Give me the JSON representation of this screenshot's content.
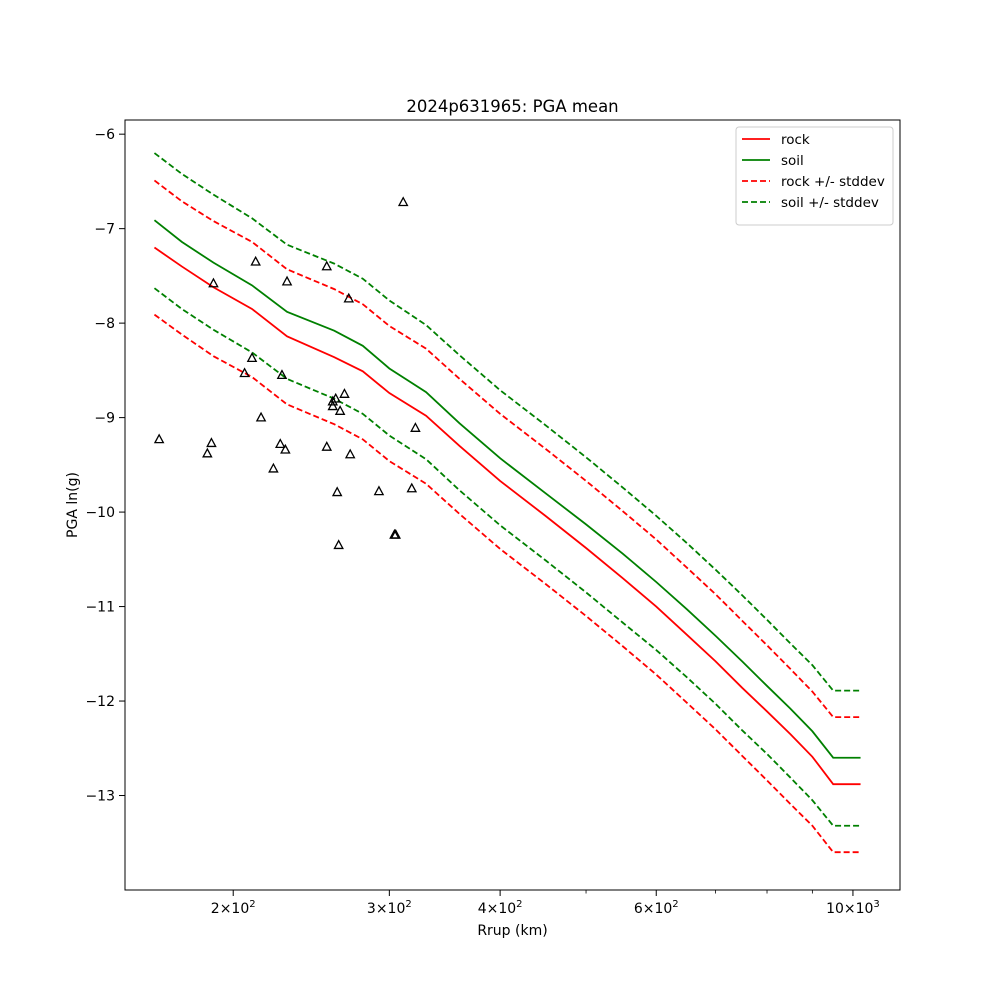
{
  "chart_data": {
    "type": "line",
    "title": "2024p631965: PGA mean",
    "xlabel": "Rrup (km)",
    "ylabel": "PGA ln(g)",
    "xscale": "log",
    "xlim": [
      151,
      1130
    ],
    "ylim": [
      -14.0,
      -5.85
    ],
    "grid": false,
    "legend_position": "top-right",
    "x_ticks": [
      {
        "value": 200,
        "base": "2",
        "exp": "2"
      },
      {
        "value": 300,
        "base": "3",
        "exp": "2"
      },
      {
        "value": 400,
        "base": "4",
        "exp": "2"
      },
      {
        "value": 600,
        "base": "6",
        "exp": "2"
      },
      {
        "value": 1000,
        "base": "10",
        "exp": "3"
      }
    ],
    "x_minor_ticks": [
      500,
      700,
      800,
      900
    ],
    "y_ticks": [
      -13,
      -12,
      -11,
      -10,
      -9,
      -8,
      -7,
      -6
    ],
    "x": [
      163,
      175,
      190,
      210,
      230,
      260,
      280,
      300,
      330,
      360,
      400,
      450,
      500,
      550,
      600,
      650,
      700,
      750,
      800,
      850,
      900,
      950,
      1020
    ],
    "series": [
      {
        "name": "rock",
        "color": "#ff0000",
        "style": "solid",
        "values": [
          -7.2,
          -7.4,
          -7.62,
          -7.85,
          -8.14,
          -8.36,
          -8.51,
          -8.74,
          -8.98,
          -9.3,
          -9.67,
          -10.04,
          -10.38,
          -10.7,
          -11.0,
          -11.3,
          -11.58,
          -11.86,
          -12.11,
          -12.35,
          -12.59,
          -12.88,
          -12.88
        ]
      },
      {
        "name": "soil",
        "color": "#008000",
        "style": "solid",
        "values": [
          -6.91,
          -7.14,
          -7.36,
          -7.6,
          -7.88,
          -8.08,
          -8.24,
          -8.48,
          -8.73,
          -9.06,
          -9.43,
          -9.8,
          -10.13,
          -10.44,
          -10.74,
          -11.03,
          -11.31,
          -11.58,
          -11.84,
          -12.08,
          -12.32,
          -12.6,
          -12.6
        ]
      },
      {
        "name": "rock +/- stddev",
        "color": "#ff0000",
        "style": "dashed",
        "values": [
          -6.49,
          -6.71,
          -6.92,
          -7.14,
          -7.43,
          -7.64,
          -7.8,
          -8.03,
          -8.27,
          -8.59,
          -8.96,
          -9.33,
          -9.67,
          -9.99,
          -10.29,
          -10.59,
          -10.87,
          -11.15,
          -11.41,
          -11.66,
          -11.9,
          -12.17,
          -12.17
        ]
      },
      {
        "name": "rock +/- stddev (lower)",
        "color": "#ff0000",
        "style": "dashed",
        "in_legend": false,
        "values": [
          -7.91,
          -8.12,
          -8.35,
          -8.57,
          -8.86,
          -9.07,
          -9.23,
          -9.46,
          -9.7,
          -10.02,
          -10.39,
          -10.76,
          -11.1,
          -11.42,
          -11.72,
          -12.02,
          -12.3,
          -12.58,
          -12.84,
          -13.09,
          -13.32,
          -13.6,
          -13.6
        ]
      },
      {
        "name": "soil +/- stddev",
        "color": "#008000",
        "style": "dashed",
        "values": [
          -6.2,
          -6.42,
          -6.64,
          -6.89,
          -7.17,
          -7.37,
          -7.53,
          -7.76,
          -8.02,
          -8.34,
          -8.71,
          -9.08,
          -9.42,
          -9.74,
          -10.04,
          -10.33,
          -10.61,
          -10.88,
          -11.14,
          -11.39,
          -11.62,
          -11.89,
          -11.89
        ]
      },
      {
        "name": "soil +/- stddev (lower)",
        "color": "#008000",
        "style": "dashed",
        "in_legend": false,
        "values": [
          -7.63,
          -7.85,
          -8.07,
          -8.31,
          -8.59,
          -8.8,
          -8.96,
          -9.19,
          -9.44,
          -9.77,
          -10.14,
          -10.51,
          -10.85,
          -11.17,
          -11.46,
          -11.75,
          -12.03,
          -12.31,
          -12.56,
          -12.81,
          -13.05,
          -13.32,
          -13.32
        ]
      }
    ],
    "observations": {
      "marker": "triangle-open",
      "color": "#000000",
      "points": [
        [
          165,
          -9.23
        ],
        [
          187,
          -9.38
        ],
        [
          189,
          -9.27
        ],
        [
          190,
          -7.58
        ],
        [
          206,
          -8.53
        ],
        [
          210,
          -8.37
        ],
        [
          212,
          -7.35
        ],
        [
          215,
          -9.0
        ],
        [
          222,
          -9.54
        ],
        [
          226,
          -9.28
        ],
        [
          227,
          -8.55
        ],
        [
          229,
          -9.34
        ],
        [
          230,
          -7.56
        ],
        [
          255,
          -7.4
        ],
        [
          255,
          -9.31
        ],
        [
          259,
          -8.88
        ],
        [
          259,
          -8.83
        ],
        [
          261,
          -8.8
        ],
        [
          262,
          -9.79
        ],
        [
          263,
          -10.35
        ],
        [
          264,
          -8.93
        ],
        [
          267,
          -8.75
        ],
        [
          270,
          -7.74
        ],
        [
          271,
          -9.39
        ],
        [
          292,
          -9.78
        ],
        [
          304,
          -10.24
        ],
        [
          305,
          -10.24
        ],
        [
          311,
          -6.72
        ],
        [
          318,
          -9.75
        ],
        [
          321,
          -9.11
        ]
      ]
    }
  }
}
